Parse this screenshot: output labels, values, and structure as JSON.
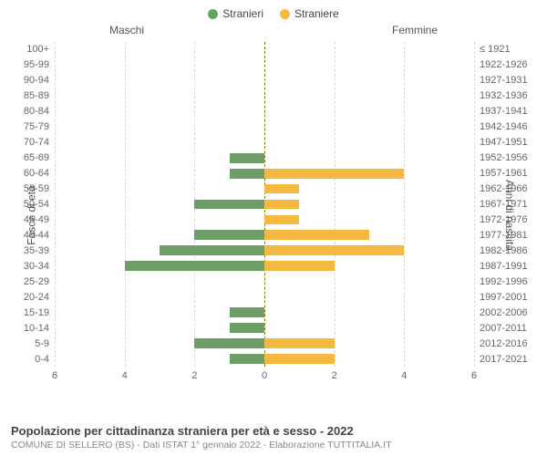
{
  "legend": {
    "male": "Stranieri",
    "female": "Straniere"
  },
  "subtitle_male": "Maschi",
  "subtitle_female": "Femmine",
  "yaxis_left": "Fasce di età",
  "yaxis_right": "Anni di nascita",
  "colors": {
    "male": "#6d9e68",
    "female": "#f5b841",
    "grid": "#d9d9d9",
    "center": "#808000",
    "bg": "#ffffff"
  },
  "xaxis": {
    "min": -6,
    "max": 6,
    "step": 2,
    "ticks": [
      6,
      4,
      2,
      0,
      0,
      2,
      4,
      6
    ],
    "tick_positions_pct": [
      0,
      16.67,
      33.33,
      50,
      50,
      66.67,
      83.33,
      100
    ]
  },
  "rows": [
    {
      "age": "100+",
      "birth": "≤ 1921",
      "m": 0,
      "f": 0
    },
    {
      "age": "95-99",
      "birth": "1922-1926",
      "m": 0,
      "f": 0
    },
    {
      "age": "90-94",
      "birth": "1927-1931",
      "m": 0,
      "f": 0
    },
    {
      "age": "85-89",
      "birth": "1932-1936",
      "m": 0,
      "f": 0
    },
    {
      "age": "80-84",
      "birth": "1937-1941",
      "m": 0,
      "f": 0
    },
    {
      "age": "75-79",
      "birth": "1942-1946",
      "m": 0,
      "f": 0
    },
    {
      "age": "70-74",
      "birth": "1947-1951",
      "m": 0,
      "f": 0
    },
    {
      "age": "65-69",
      "birth": "1952-1956",
      "m": 1,
      "f": 0
    },
    {
      "age": "60-64",
      "birth": "1957-1961",
      "m": 1,
      "f": 4
    },
    {
      "age": "55-59",
      "birth": "1962-1966",
      "m": 0,
      "f": 1
    },
    {
      "age": "50-54",
      "birth": "1967-1971",
      "m": 2,
      "f": 1
    },
    {
      "age": "45-49",
      "birth": "1972-1976",
      "m": 0,
      "f": 1
    },
    {
      "age": "40-44",
      "birth": "1977-1981",
      "m": 2,
      "f": 3
    },
    {
      "age": "35-39",
      "birth": "1982-1986",
      "m": 3,
      "f": 4
    },
    {
      "age": "30-34",
      "birth": "1987-1991",
      "m": 4,
      "f": 2
    },
    {
      "age": "25-29",
      "birth": "1992-1996",
      "m": 0,
      "f": 0
    },
    {
      "age": "20-24",
      "birth": "1997-2001",
      "m": 0,
      "f": 0
    },
    {
      "age": "15-19",
      "birth": "2002-2006",
      "m": 1,
      "f": 0
    },
    {
      "age": "10-14",
      "birth": "2007-2011",
      "m": 1,
      "f": 0
    },
    {
      "age": "5-9",
      "birth": "2012-2016",
      "m": 2,
      "f": 2
    },
    {
      "age": "0-4",
      "birth": "2017-2021",
      "m": 1,
      "f": 2
    }
  ],
  "footer": {
    "title": "Popolazione per cittadinanza straniera per età e sesso - 2022",
    "sub": "COMUNE DI SELLERO (BS) - Dati ISTAT 1° gennaio 2022 - Elaborazione TUTTITALIA.IT"
  }
}
